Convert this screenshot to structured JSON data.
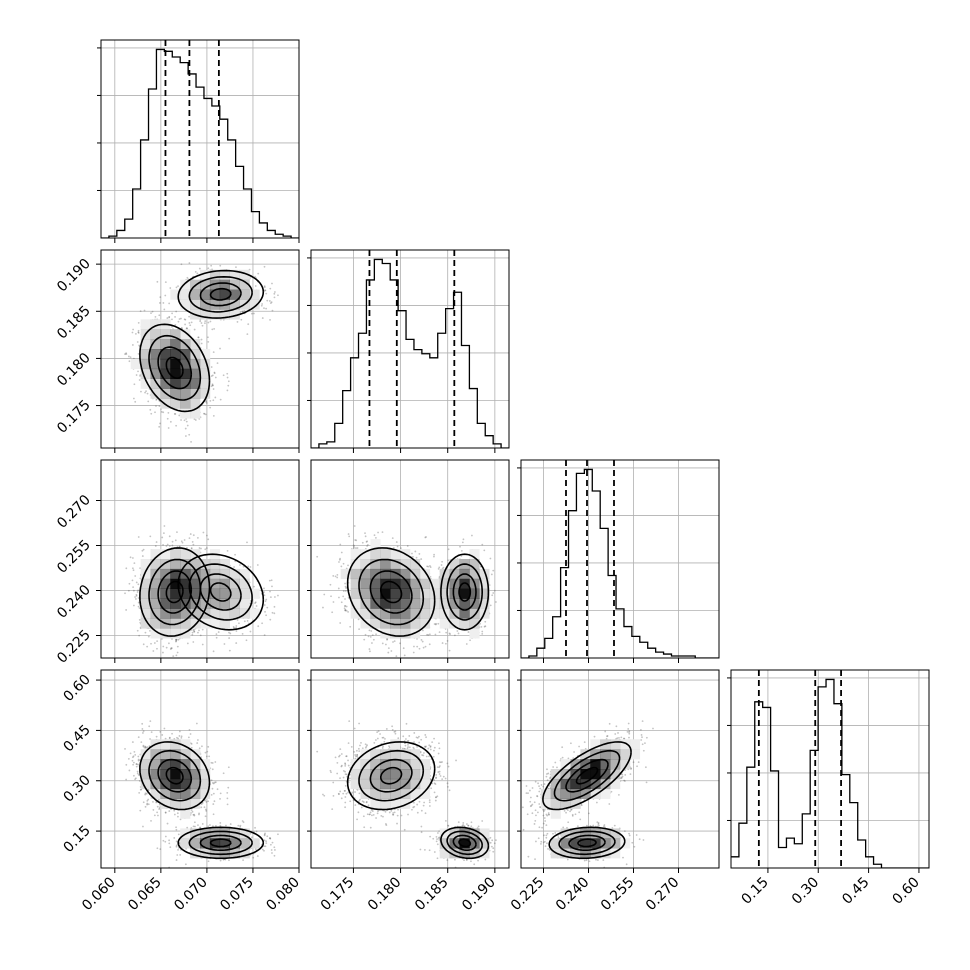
{
  "chart_data": {
    "type": "corner",
    "grid": true,
    "params": [
      {
        "range": [
          0.0585,
          0.08
        ],
        "xticks": [
          0.06,
          0.065,
          0.07,
          0.075,
          0.08
        ],
        "xtick_labels": [
          "0.060",
          "0.065",
          "0.070",
          "0.075",
          "0.080"
        ],
        "ytick_labels_left": [],
        "hist": [
          0,
          1,
          4,
          10,
          26,
          52,
          79,
          100,
          99,
          96,
          93,
          87,
          80,
          74,
          70,
          63,
          52,
          38,
          26,
          14,
          8,
          4,
          2,
          1,
          0
        ],
        "quantiles": [
          0.0655,
          0.0681,
          0.0713
        ]
      },
      {
        "range": [
          0.1705,
          0.1915
        ],
        "xticks": [
          0.175,
          0.18,
          0.185,
          0.19
        ],
        "xtick_labels": [
          "0.175",
          "0.180",
          "0.185",
          "0.190"
        ],
        "ytick_labels_left": [
          "0.175",
          "0.180",
          "0.185",
          "0.190"
        ],
        "hist": [
          0,
          2,
          3,
          12,
          28,
          44,
          56,
          82,
          92,
          90,
          82,
          67,
          53,
          48,
          46,
          44,
          56,
          68,
          76,
          50,
          29,
          12,
          6,
          2,
          0
        ],
        "quantiles": [
          0.1767,
          0.1796,
          0.1857
        ]
      },
      {
        "range": [
          0.2175,
          0.2835
        ],
        "xticks": [
          0.225,
          0.24,
          0.255,
          0.27
        ],
        "xtick_labels": [
          "0.225",
          "0.240",
          "0.255",
          "0.270"
        ],
        "ytick_labels_left": [
          "0.225",
          "0.240",
          "0.255",
          "0.270"
        ],
        "hist": [
          0,
          1,
          5,
          10,
          21,
          46,
          75,
          94,
          96,
          85,
          66,
          42,
          25,
          16,
          11,
          8,
          5,
          3,
          2,
          1,
          1,
          1,
          0,
          0,
          0
        ],
        "quantiles": [
          0.2325,
          0.2395,
          0.2485
        ]
      },
      {
        "range": [
          0.04,
          0.63
        ],
        "xticks": [
          0.15,
          0.3,
          0.45,
          0.6
        ],
        "xtick_labels": [
          "0.15",
          "0.30",
          "0.45",
          "0.60"
        ],
        "ytick_labels_left": [
          "0.15",
          "0.30",
          "0.45",
          "0.60"
        ],
        "hist": [
          6,
          24,
          54,
          89,
          86,
          52,
          11,
          16,
          13,
          29,
          63,
          97,
          101,
          88,
          50,
          35,
          15,
          6,
          2,
          0,
          0,
          0,
          0,
          0,
          0
        ],
        "quantiles": [
          0.123,
          0.291,
          0.368
        ]
      }
    ],
    "modes": [
      {
        "center": [
          0.0665,
          0.179,
          0.2395,
          0.315
        ],
        "sd": [
          0.0018,
          0.0022,
          0.007,
          0.048
        ],
        "weight": 0.68,
        "rho": {
          "0-1": -0.3,
          "0-3": -0.2,
          "2-3": 0.7,
          "0-2": 0.1,
          "1-2": -0.2,
          "1-3": 0.2
        }
      },
      {
        "center": [
          0.0715,
          0.1868,
          0.2395,
          0.115
        ],
        "sd": [
          0.0022,
          0.0012,
          0.006,
          0.022
        ],
        "weight": 0.32,
        "rho": {
          "0-1": 0.1,
          "0-3": 0.0,
          "2-3": 0.1,
          "0-2": -0.2,
          "1-2": 0.0,
          "1-3": -0.2
        }
      }
    ]
  }
}
